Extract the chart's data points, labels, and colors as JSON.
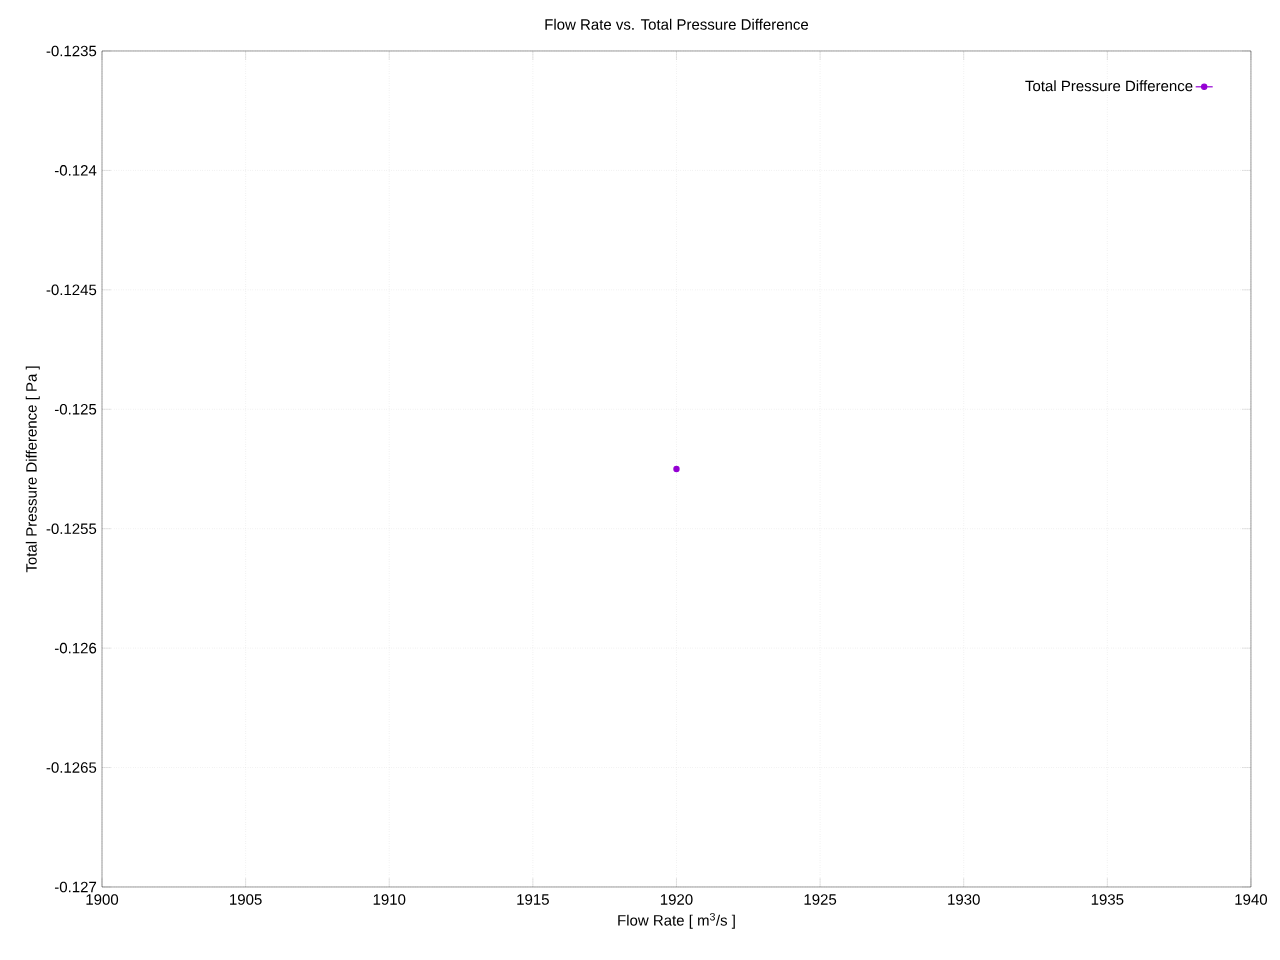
{
  "chart_data": {
    "type": "line",
    "title": "Flow Rate vs. Total Pressure Difference",
    "xlabel": "Flow Rate [ m$^{3}$/s ]",
    "ylabel": "Total Pressure Difference [ Pa ]",
    "x": [
      1920
    ],
    "series": [
      {
        "name": "Total Pressure Difference",
        "color": "#9400d3",
        "values": [
          -0.12525
        ]
      }
    ],
    "xlim": [
      1900,
      1940
    ],
    "xticks": [
      1900,
      1905,
      1910,
      1915,
      1920,
      1925,
      1930,
      1935,
      1940
    ],
    "ylim": [
      -0.127,
      -0.1235
    ],
    "yticks": [
      -0.127,
      -0.1265,
      -0.126,
      -0.1255,
      -0.125,
      -0.1245,
      -0.124,
      -0.1235
    ],
    "grid": true,
    "legend": "top right",
    "marker": "circle"
  }
}
